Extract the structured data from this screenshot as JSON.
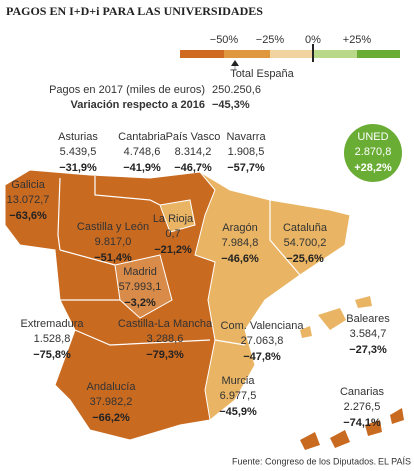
{
  "title": "PAGOS EN I+D+i PARA LAS UNIVERSIDADES",
  "legend": {
    "ticks": [
      "−50%",
      "−25%",
      "0%",
      "+25%"
    ]
  },
  "total": {
    "label": "Total España",
    "rows": [
      {
        "label": "Pagos en 2017 (miles de euros)",
        "value": "250.250,6"
      },
      {
        "label": "Variación respecto a 2016",
        "value": "−45,3%"
      }
    ]
  },
  "regions": [
    {
      "name": "Asturias",
      "payments": "5.439,5",
      "change": "−31,9%"
    },
    {
      "name": "Cantabria",
      "payments": "4.748,6",
      "change": "−41,9%"
    },
    {
      "name": "País Vasco",
      "payments": "8.314,2",
      "change": "−46,7%"
    },
    {
      "name": "Navarra",
      "payments": "1.908,5",
      "change": "−57,7%"
    },
    {
      "name": "UNED",
      "payments": "2.870,8",
      "change": "+28,2%"
    },
    {
      "name": "Galicia",
      "payments": "13.072,7",
      "change": "−63,6%"
    },
    {
      "name": "Castilla y León",
      "payments": "9.817,0",
      "change": "−51,4%"
    },
    {
      "name": "La Rioja",
      "payments": "0,7",
      "change": "−21,2%"
    },
    {
      "name": "Aragón",
      "payments": "7.984,8",
      "change": "−46,6%"
    },
    {
      "name": "Cataluña",
      "payments": "54.700,2",
      "change": "−25,6%"
    },
    {
      "name": "Madrid",
      "payments": "57.993,1",
      "change": "−3,2%"
    },
    {
      "name": "Extremadura",
      "payments": "1.528,8",
      "change": "−75,8%"
    },
    {
      "name": "Castilla-La Mancha",
      "payments": "3.288,6",
      "change": "−79,3%"
    },
    {
      "name": "Com. Valenciana",
      "payments": "27.063,8",
      "change": "−47,8%"
    },
    {
      "name": "Baleares",
      "payments": "3.584,7",
      "change": "−27,3%"
    },
    {
      "name": "Andalucía",
      "payments": "37.982,2",
      "change": "−66,2%"
    },
    {
      "name": "Murcia",
      "payments": "6.977,5",
      "change": "−45,9%"
    },
    {
      "name": "Canarias",
      "payments": "2.276,5",
      "change": "−74,1%"
    }
  ],
  "source": "Fuente: Congreso de los Diputados.",
  "credit": "EL PAÍS"
}
